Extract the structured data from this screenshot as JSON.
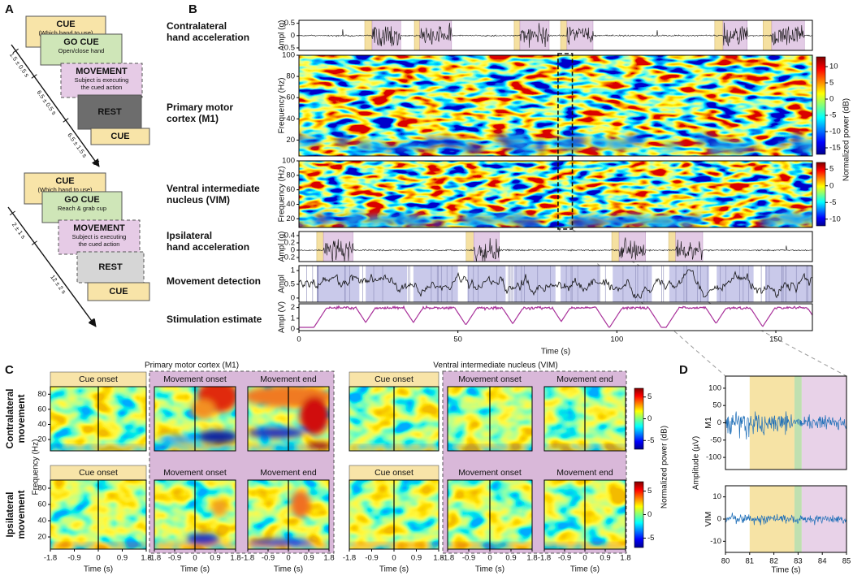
{
  "panel_a": {
    "label": "A",
    "task_1": {
      "cue": {
        "title": "CUE",
        "note": [
          "(Which hand to use)"
        ]
      },
      "go_cue": {
        "title": "GO CUE",
        "note": [
          "Open/close hand"
        ]
      },
      "movement": {
        "title": "MOVEMENT",
        "note": [
          "Subject is executing",
          "the cued action"
        ]
      },
      "rest": {
        "title": "REST"
      },
      "next_cue": {
        "title": "CUE"
      },
      "durations": [
        "1.5 ± 0.5 s",
        "6.5 ± 0.5 s",
        "6.5 ± 1.5 s"
      ]
    },
    "task_2": {
      "cue": {
        "title": "CUE",
        "note": [
          "(Which hand to use)"
        ]
      },
      "go_cue": {
        "title": "GO CUE",
        "note": [
          "Reach & grab cup"
        ]
      },
      "movement": {
        "title": "MOVEMENT",
        "note": [
          "Subject is executing",
          "the cued action"
        ]
      },
      "rest": {
        "title": "REST"
      },
      "next_cue": {
        "title": "CUE"
      },
      "durations": [
        "2 ± 1 s",
        "12 ± 2 s"
      ]
    }
  },
  "panel_b": {
    "label": "B",
    "xlim": [
      0,
      161.5
    ],
    "xticks": [
      0,
      50,
      100,
      150
    ],
    "xlabel": "Time (s)",
    "contralateral": {
      "label": [
        "Contralateral",
        "hand acceleration"
      ],
      "ylabel": "Ampl (g)",
      "ylim": [
        -0.6,
        0.62
      ],
      "yticks": [
        0.5,
        0,
        -0.5
      ]
    },
    "m1": {
      "label": [
        "Primary motor",
        "cortex (M1)"
      ],
      "ylabel": "Frequency (Hz)",
      "ylim": [
        5,
        100
      ],
      "yticks": [
        20,
        40,
        60,
        80,
        100
      ],
      "clim": [
        -17,
        13
      ],
      "cticks": [
        10,
        5,
        0,
        -5,
        -10,
        -15
      ]
    },
    "vim": {
      "label": [
        "Ventral intermediate",
        "nucleus (VIM)"
      ],
      "ylabel": "Frequency (Hz)",
      "ylim": [
        8,
        100
      ],
      "yticks": [
        20,
        40,
        60,
        80,
        100
      ],
      "clim": [
        -12,
        7
      ],
      "cticks": [
        5,
        0,
        -5,
        -10
      ]
    },
    "colorbar_label": "Normalized power (dB)",
    "ipsilateral": {
      "label": [
        "Ipsilateral",
        "hand acceleration"
      ],
      "ylabel": "Ampl (g)",
      "ylim": [
        -0.31,
        0.51
      ],
      "yticks": [
        0.4,
        0.2,
        0,
        -0.2
      ]
    },
    "movement_detection": {
      "label": [
        "Movement detection"
      ],
      "ylabel": "Ampl",
      "ylim": [
        -0.15,
        1.18
      ],
      "yticks": [
        0,
        0.5,
        1
      ]
    },
    "stimulation": {
      "label": [
        "Stimulation estimate"
      ],
      "ylabel": "Ampl (V)",
      "ylim": [
        -0.15,
        2.35
      ],
      "yticks": [
        0,
        1,
        2
      ]
    },
    "contralateral_events": [
      {
        "cue": 20.7,
        "start": 23,
        "end": 32
      },
      {
        "cue": 36.3,
        "start": 38,
        "end": 48
      },
      {
        "cue": 67.7,
        "start": 69.5,
        "end": 78.7
      },
      {
        "cue": 82.3,
        "start": 84.3,
        "end": 92.5
      },
      {
        "cue": 130.8,
        "start": 133.4,
        "end": 141
      },
      {
        "cue": 146,
        "start": 148.7,
        "end": 159
      }
    ],
    "ipsilateral_events": [
      {
        "cue": 5.6,
        "start": 7.7,
        "end": 17
      },
      {
        "cue": 52.6,
        "start": 55,
        "end": 63
      },
      {
        "cue": 98.4,
        "start": 100.7,
        "end": 109
      },
      {
        "cue": 116.3,
        "start": 118.5,
        "end": 127
      }
    ],
    "zoom_window": [
      81.5,
      86
    ]
  },
  "panel_c": {
    "label": "C",
    "regions": [
      "Primary motor cortex (M1)",
      "Ventral intermediate nucleus (VIM)"
    ],
    "rows": [
      [
        "Contralateral",
        "movement"
      ],
      [
        "Ipsilateral",
        "movement"
      ]
    ],
    "titles": [
      [
        "Cue onset",
        "Movement onset",
        "Movement end",
        "Cue onset",
        "Movement onset",
        "Movement end"
      ],
      [
        "Cue onset",
        "Movement onset",
        "Movement end",
        "Cue onset",
        "Movement onset",
        "Movement end"
      ]
    ],
    "ylabel": "Frequency (Hz)",
    "ylim": [
      5,
      90
    ],
    "yticks": [
      20,
      40,
      60,
      80
    ],
    "xlim": [
      -1.8,
      1.8
    ],
    "xticks": [
      -1.8,
      -0.9,
      0,
      0.9,
      1.8
    ],
    "xlabel": "Time (s)",
    "clim": [
      -7,
      7
    ],
    "cticks": [
      5,
      0,
      -5
    ],
    "colorbar_label": "Normalized power (dB)"
  },
  "panel_d": {
    "label": "D",
    "xlim": [
      80,
      85
    ],
    "xticks": [
      80,
      81,
      82,
      83,
      84,
      85
    ],
    "xlabel": "Time (s)",
    "ylabel": "Amplitude (µV)",
    "m1": {
      "label": "M1",
      "ylim": [
        -135,
        135
      ],
      "yticks": [
        100,
        50,
        0,
        -50,
        -100
      ]
    },
    "vim": {
      "label": "VIM",
      "ylim": [
        -15,
        15
      ],
      "yticks": [
        10,
        0,
        -10
      ]
    },
    "phases": [
      {
        "start": 81,
        "end": 82.85,
        "color": "#f6e3a5"
      },
      {
        "start": 82.85,
        "end": 83.15,
        "color": "#bfe0b0"
      },
      {
        "start": 83.15,
        "end": 85,
        "color": "#e8d2e8"
      }
    ]
  }
}
